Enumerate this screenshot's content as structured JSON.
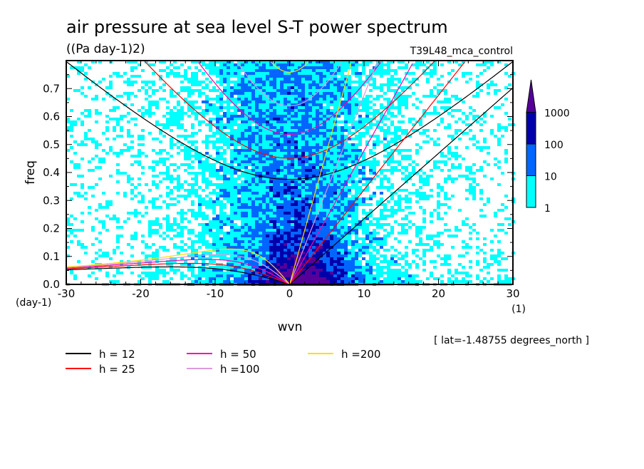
{
  "chart_data": {
    "type": "heatmap",
    "title": "air pressure at sea level S-T power spectrum",
    "units": "((Pa day-1)2)",
    "dataset": "T39L48_mca_control",
    "xlabel": "wvn",
    "ylabel": "freq",
    "xunits": "(1)",
    "yunits": "(day-1)",
    "xlim": [
      -30,
      30
    ],
    "ylim": [
      0,
      0.8
    ],
    "xticks": [
      "-30",
      "-20",
      "-10",
      "0",
      "10",
      "20",
      "30"
    ],
    "yticks": [
      "0.0",
      "0.1",
      "0.2",
      "0.3",
      "0.4",
      "0.5",
      "0.6",
      "0.7"
    ],
    "location": "[ lat=-1.48755 degrees_north ]",
    "colorbar": {
      "levels": [
        "1",
        "10",
        "100",
        "1000"
      ],
      "colors": [
        "#00ffff",
        "#0066ff",
        "#0000aa",
        "#550099"
      ]
    },
    "dispersion_curves": [
      {
        "label": "h = 12",
        "h": 12,
        "color": "#000000"
      },
      {
        "label": "h = 25",
        "h": 25,
        "color": "#ff0000"
      },
      {
        "label": "h = 50",
        "h": 50,
        "color": "#ff00aa"
      },
      {
        "label": "h =100",
        "h": 100,
        "color": "#dd99dd"
      },
      {
        "label": "h =200",
        "h": 200,
        "color": "#ffdd00"
      }
    ]
  }
}
